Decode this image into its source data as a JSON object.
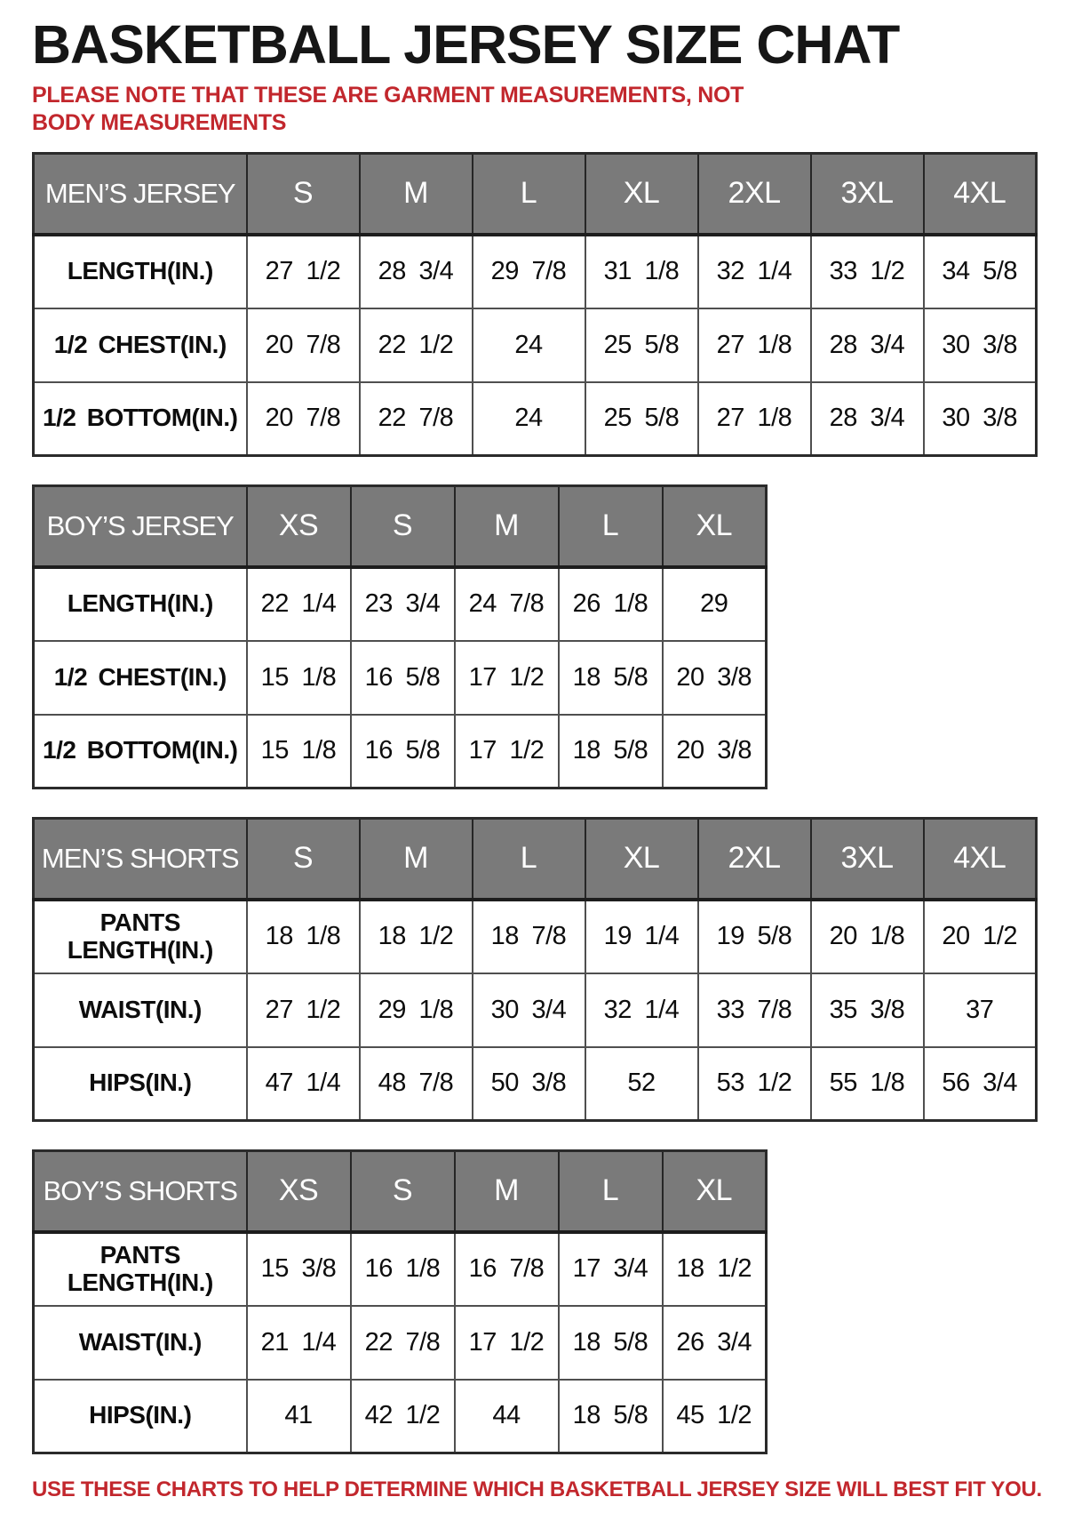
{
  "title": "BASKETBALL JERSEY SIZE CHAT",
  "note_top": "PLEASE NOTE THAT THESE ARE GARMENT MEASUREMENTS, NOT BODY MEASUREMENTS",
  "note_bottom": "USE THESE CHARTS TO HELP DETERMINE WHICH BASKETBALL JERSEY SIZE WILL BEST FIT YOU.",
  "colors": {
    "header_bg": "#7a7a7a",
    "header_text": "#ffffff",
    "note_red": "#c2272d",
    "border_dark": "#2b2b2b",
    "border_inner": "#4f4f4f"
  },
  "chart_data": [
    {
      "type": "table",
      "id": "mens-jersey",
      "title": "MEN’S JERSEY",
      "columns": [
        "S",
        "M",
        "L",
        "XL",
        "2XL",
        "3XL",
        "4XL"
      ],
      "rows": [
        {
          "label": "LENGTH(IN.)",
          "values": [
            "27 1/2",
            "28 3/4",
            "29 7/8",
            "31 1/8",
            "32 1/4",
            "33 1/2",
            "34 5/8"
          ]
        },
        {
          "label": "1/2 CHEST(IN.)",
          "values": [
            "20 7/8",
            "22 1/2",
            "24",
            "25 5/8",
            "27 1/8",
            "28 3/4",
            "30 3/8"
          ]
        },
        {
          "label": "1/2 BOTTOM(IN.)",
          "values": [
            "20 7/8",
            "22 7/8",
            "24",
            "25 5/8",
            "27 1/8",
            "28 3/4",
            "30 3/8"
          ]
        }
      ]
    },
    {
      "type": "table",
      "id": "boys-jersey",
      "title": "BOY’S JERSEY",
      "columns": [
        "XS",
        "S",
        "M",
        "L",
        "XL"
      ],
      "rows": [
        {
          "label": "LENGTH(IN.)",
          "values": [
            "22 1/4",
            "23 3/4",
            "24 7/8",
            "26 1/8",
            "29"
          ]
        },
        {
          "label": "1/2 CHEST(IN.)",
          "values": [
            "15 1/8",
            "16 5/8",
            "17 1/2",
            "18 5/8",
            "20 3/8"
          ]
        },
        {
          "label": "1/2 BOTTOM(IN.)",
          "values": [
            "15 1/8",
            "16 5/8",
            "17 1/2",
            "18 5/8",
            "20 3/8"
          ]
        }
      ]
    },
    {
      "type": "table",
      "id": "mens-shorts",
      "title": "MEN’S SHORTS",
      "columns": [
        "S",
        "M",
        "L",
        "XL",
        "2XL",
        "3XL",
        "4XL"
      ],
      "rows": [
        {
          "label": "PANTS\nLENGTH(IN.)",
          "values": [
            "18 1/8",
            "18 1/2",
            "18 7/8",
            "19 1/4",
            "19 5/8",
            "20 1/8",
            "20 1/2"
          ]
        },
        {
          "label": "WAIST(IN.)",
          "values": [
            "27 1/2",
            "29 1/8",
            "30 3/4",
            "32 1/4",
            "33 7/8",
            "35 3/8",
            "37"
          ]
        },
        {
          "label": "HIPS(IN.)",
          "values": [
            "47 1/4",
            "48 7/8",
            "50 3/8",
            "52",
            "53 1/2",
            "55 1/8",
            "56 3/4"
          ]
        }
      ]
    },
    {
      "type": "table",
      "id": "boys-shorts",
      "title": "BOY’S SHORTS",
      "columns": [
        "XS",
        "S",
        "M",
        "L",
        "XL"
      ],
      "rows": [
        {
          "label": "PANTS\nLENGTH(IN.)",
          "values": [
            "15 3/8",
            "16 1/8",
            "16 7/8",
            "17 3/4",
            "18 1/2"
          ]
        },
        {
          "label": "WAIST(IN.)",
          "values": [
            "21 1/4",
            "22 7/8",
            "17 1/2",
            "18 5/8",
            "26 3/4"
          ]
        },
        {
          "label": "HIPS(IN.)",
          "values": [
            "41",
            "42 1/2",
            "44",
            "18 5/8",
            "45 1/2"
          ]
        }
      ]
    }
  ]
}
